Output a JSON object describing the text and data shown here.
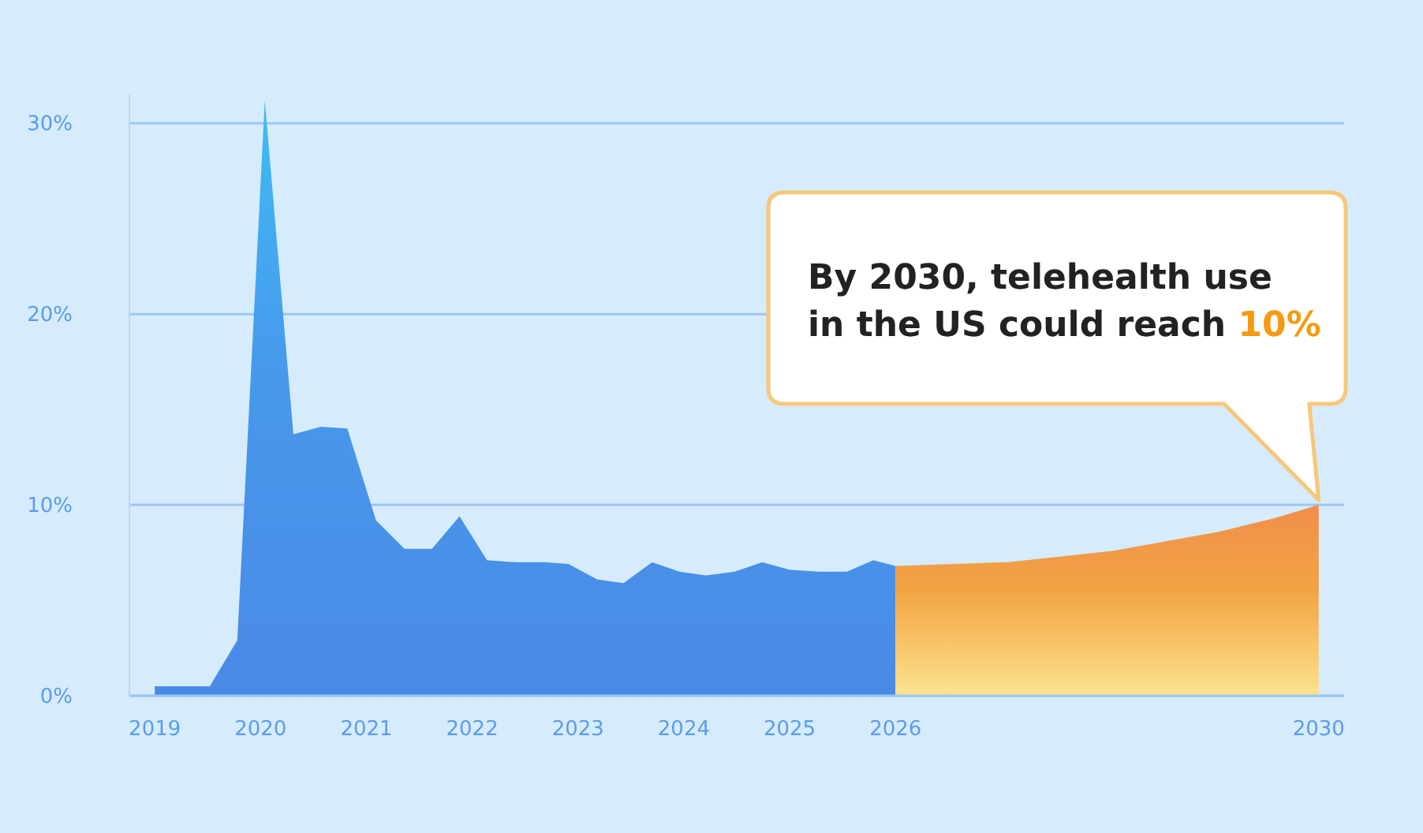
{
  "chart_data": {
    "type": "area",
    "xlim": [
      2018.76,
      2030.24
    ],
    "ylim": [
      0,
      31.5
    ],
    "xticks": [
      2019,
      2020,
      2021,
      2022,
      2023,
      2024,
      2025,
      2026,
      2030
    ],
    "yticks": [
      {
        "value": 0,
        "label": "0%"
      },
      {
        "value": 10,
        "label": "10%"
      },
      {
        "value": 20,
        "label": "20%"
      },
      {
        "value": 30,
        "label": "30%"
      }
    ],
    "grid": "y",
    "series": [
      {
        "color": "#4a8ae6",
        "x": [
          2019,
          2019.33,
          2019.52,
          2019.78,
          2020.04,
          2020.31,
          2020.57,
          2020.82,
          2021.09,
          2021.36,
          2021.62,
          2021.88,
          2022.14,
          2022.41,
          2022.69,
          2022.91,
          2023.18,
          2023.43,
          2023.7,
          2023.96,
          2024.21,
          2024.48,
          2024.74,
          2025,
          2025.27,
          2025.54,
          2025.79,
          2026
        ],
        "values": [
          0.5,
          0.5,
          0.5,
          2.9,
          31.2,
          13.7,
          14.1,
          14,
          9.2,
          7.7,
          7.7,
          9.4,
          7.1,
          7,
          7,
          6.9,
          6.1,
          5.9,
          7,
          6.5,
          6.3,
          6.5,
          7,
          6.6,
          6.5,
          6.5,
          7.1,
          6.8
        ]
      },
      {
        "color": "#f2a444",
        "x": [
          2026,
          2027.06,
          2028.06,
          2029.06,
          2029.58,
          2030
        ],
        "values": [
          6.8,
          7,
          7.6,
          8.6,
          9.3,
          10
        ]
      }
    ],
    "annotations": [
      "By 2030, telehealth use in the US could reach 10%"
    ]
  }
}
